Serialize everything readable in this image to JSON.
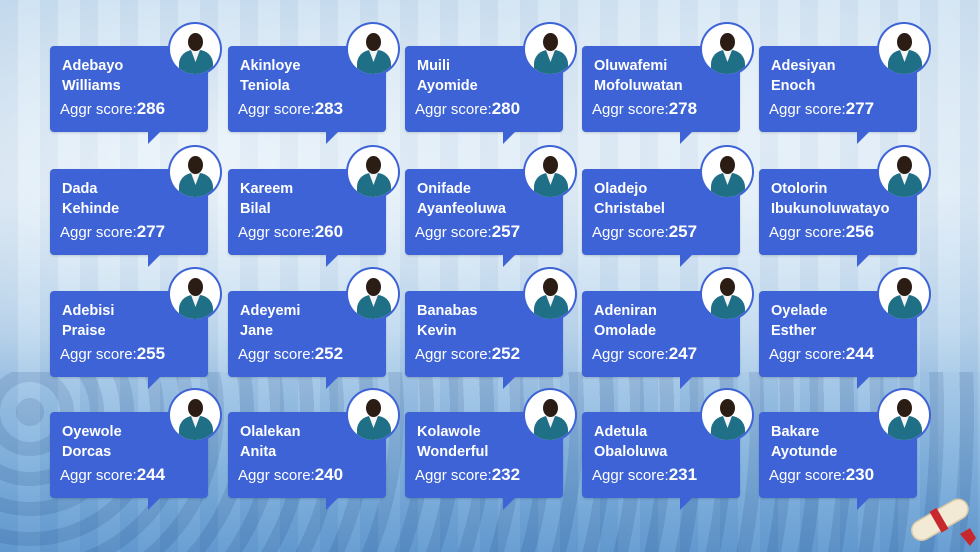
{
  "score_label": "Aggr score:",
  "students": [
    {
      "first": "Adebayo",
      "last": "Williams",
      "score": "286"
    },
    {
      "first": "Akinloye",
      "last": "Teniola",
      "score": "283"
    },
    {
      "first": "Muili",
      "last": "Ayomide",
      "score": "280"
    },
    {
      "first": "Oluwafemi",
      "last": "Mofoluwatan",
      "score": "278"
    },
    {
      "first": "Adesiyan",
      "last": "Enoch",
      "score": "277"
    },
    {
      "first": "Dada",
      "last": "Kehinde",
      "score": "277"
    },
    {
      "first": "Kareem",
      "last": "Bilal",
      "score": "260"
    },
    {
      "first": "Onifade",
      "last": "Ayanfeoluwa",
      "score": "257"
    },
    {
      "first": "Oladejo",
      "last": "Christabel",
      "score": "257"
    },
    {
      "first": "Otolorin",
      "last": "Ibukunoluwatayo",
      "score": "256"
    },
    {
      "first": "Adebisi",
      "last": "Praise",
      "score": "255"
    },
    {
      "first": "Adeyemi",
      "last": "Jane",
      "score": "252"
    },
    {
      "first": "Banabas",
      "last": "Kevin",
      "score": "252"
    },
    {
      "first": "Adeniran",
      "last": "Omolade",
      "score": "247"
    },
    {
      "first": "Oyelade",
      "last": "Esther",
      "score": "244"
    },
    {
      "first": "Oyewole",
      "last": "Dorcas",
      "score": "244"
    },
    {
      "first": "Olalekan",
      "last": "Anita",
      "score": "240"
    },
    {
      "first": "Kolawole",
      "last": "Wonderful",
      "score": "232"
    },
    {
      "first": "Adetula",
      "last": "Obaloluwa",
      "score": "231"
    },
    {
      "first": "Bakare",
      "last": "Ayotunde",
      "score": "230"
    }
  ],
  "colors": {
    "bubble": "#3d63d6",
    "uniform": "#1f6f86"
  },
  "icons": {
    "avatar": "student-photo",
    "decor": "diploma-scroll-icon"
  }
}
